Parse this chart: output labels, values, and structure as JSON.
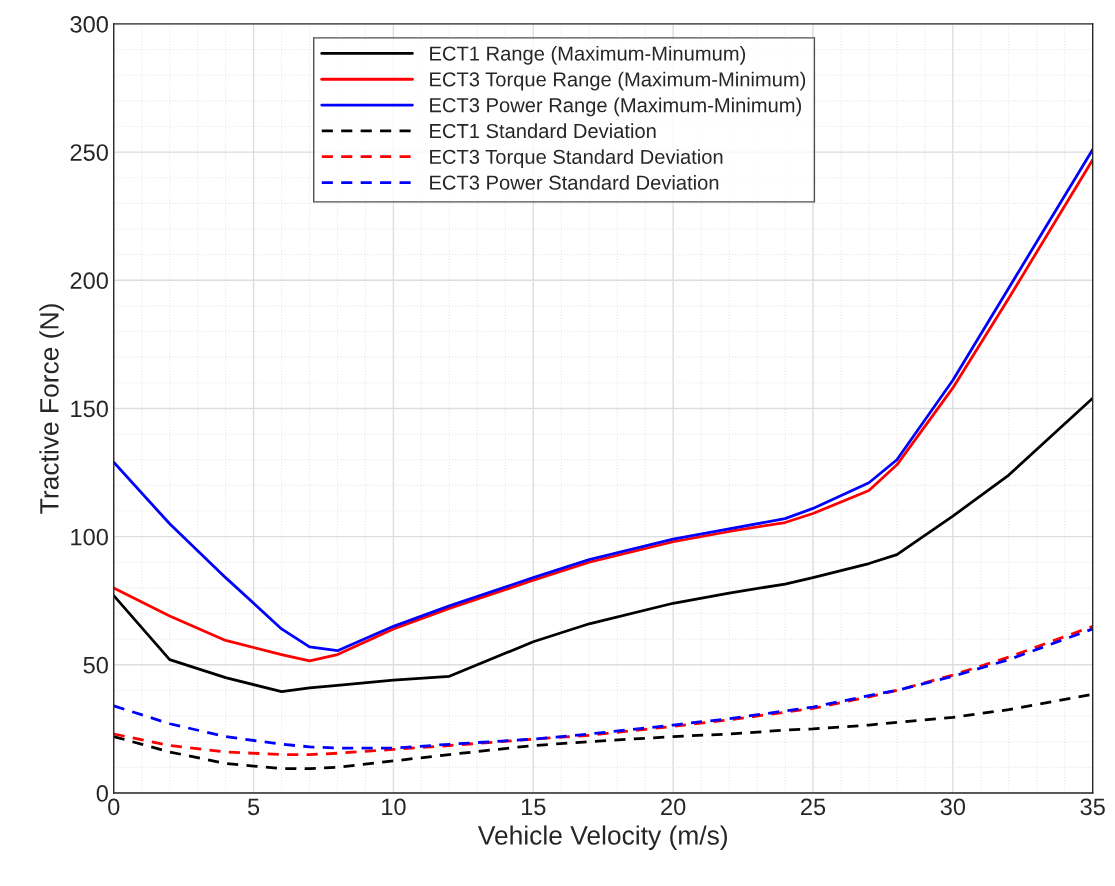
{
  "chart_data": {
    "type": "line",
    "xlabel": "Vehicle Velocity (m/s)",
    "ylabel": "Tractive Force (N)",
    "x": [
      0,
      2,
      4,
      6,
      7,
      8,
      10,
      12,
      15,
      17,
      20,
      22,
      24,
      25,
      27,
      28,
      30,
      32,
      35
    ],
    "xlim": [
      0,
      35
    ],
    "xticks": [
      0,
      5,
      10,
      15,
      20,
      25,
      30,
      35
    ],
    "ylim": [
      0,
      300
    ],
    "yticks": [
      0,
      50,
      100,
      150,
      200,
      250,
      300
    ],
    "grid": true,
    "legend": "top",
    "marker": "none",
    "series": [
      {
        "name": "ECT1 Range (Maximum-Minumum)",
        "color": "#000000",
        "line_style": "solid",
        "values": [
          77,
          52,
          45,
          39.5,
          41,
          42,
          44,
          45.5,
          59,
          66,
          74,
          78,
          81.5,
          84,
          89.5,
          93,
          108,
          124,
          154
        ]
      },
      {
        "name": "ECT3 Torque Range (Maximum-Minimum)",
        "color": "#ff0000",
        "line_style": "solid",
        "values": [
          80,
          69,
          59.5,
          54,
          51.5,
          54,
          64,
          72,
          83,
          90,
          98,
          102,
          105.5,
          109,
          118,
          128,
          158,
          193,
          247
        ]
      },
      {
        "name": "ECT3 Power Range (Maximum-Minimum)",
        "color": "#0000ff",
        "line_style": "solid",
        "values": [
          129,
          105,
          84,
          64,
          57,
          55.5,
          65,
          73,
          84,
          91,
          99,
          103,
          107,
          111,
          121,
          130,
          161,
          197,
          251
        ]
      },
      {
        "name": "ECT1 Standard Deviation",
        "color": "#000000",
        "line_style": "dashed",
        "values": [
          22,
          16,
          11.5,
          9.5,
          9.5,
          10,
          12.5,
          15,
          18.5,
          20,
          22,
          23,
          24.5,
          25,
          26.5,
          27.5,
          29.5,
          32.5,
          38.5
        ]
      },
      {
        "name": "ECT3 Torque Standard Deviation",
        "color": "#ff0000",
        "line_style": "dashed",
        "values": [
          23,
          18.5,
          16,
          15,
          15,
          15.5,
          17,
          18.5,
          21,
          22.5,
          26,
          28.5,
          31.5,
          33,
          37.5,
          40,
          46,
          53,
          65
        ]
      },
      {
        "name": "ECT3 Power Standard Deviation",
        "color": "#0000ff",
        "line_style": "dashed",
        "values": [
          34,
          27,
          22,
          19,
          18,
          17.5,
          17.5,
          19,
          21,
          23,
          26.5,
          29,
          32,
          33.5,
          38,
          40,
          45.5,
          52,
          64
        ]
      }
    ]
  }
}
